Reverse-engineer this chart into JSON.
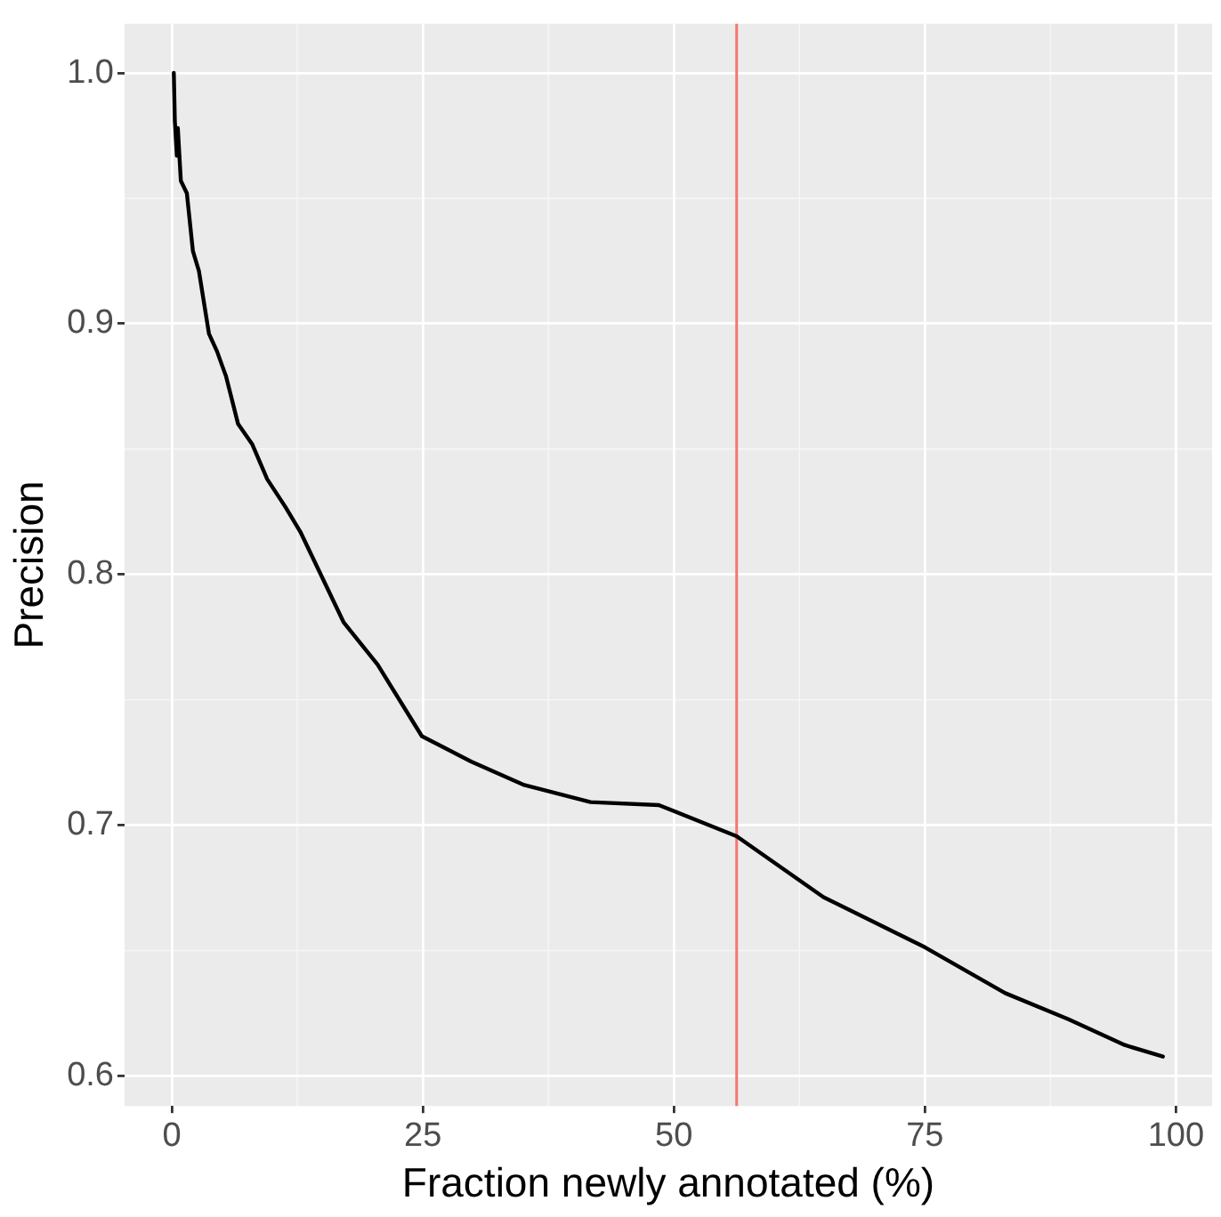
{
  "chart_data": {
    "type": "line",
    "xlabel": "Fraction newly annotated (%)",
    "ylabel": "Precision",
    "series": [
      {
        "color": "#000000",
        "x": [
          0.2,
          0.3,
          0.5,
          0.6,
          0.9,
          1.5,
          2.1,
          2.7,
          3.7,
          4.5,
          5.4,
          6.6,
          8.0,
          9.5,
          11.3,
          12.8,
          17.1,
          20.5,
          24.9,
          29.8,
          35.1,
          41.7,
          48.5,
          56.25,
          64.9,
          75,
          83,
          89.3,
          94.9,
          98.7
        ],
        "values": [
          1.0,
          0.981,
          0.967,
          0.978,
          0.957,
          0.952,
          0.929,
          0.921,
          0.896,
          0.889,
          0.879,
          0.86,
          0.852,
          0.838,
          0.827,
          0.817,
          0.781,
          0.764,
          0.7355,
          0.7254,
          0.716,
          0.7092,
          0.708,
          0.6956,
          0.6713,
          0.6513,
          0.633,
          0.6226,
          0.6123,
          0.6077
        ]
      }
    ],
    "xlim": [
      -4.7,
      103.6
    ],
    "ylim": [
      0.588,
      1.0196
    ],
    "xticks": [
      0,
      25,
      50,
      75,
      100
    ],
    "yticks": [
      0.6,
      0.7,
      0.8,
      0.9,
      {
        "value": 1.0,
        "label": "1.0"
      }
    ],
    "ref_lines": [
      {
        "axis": "x",
        "value": 56.25,
        "color": "#f8766d"
      }
    ],
    "grid": true,
    "legend": false,
    "marker": "none",
    "line_style": "solid"
  }
}
